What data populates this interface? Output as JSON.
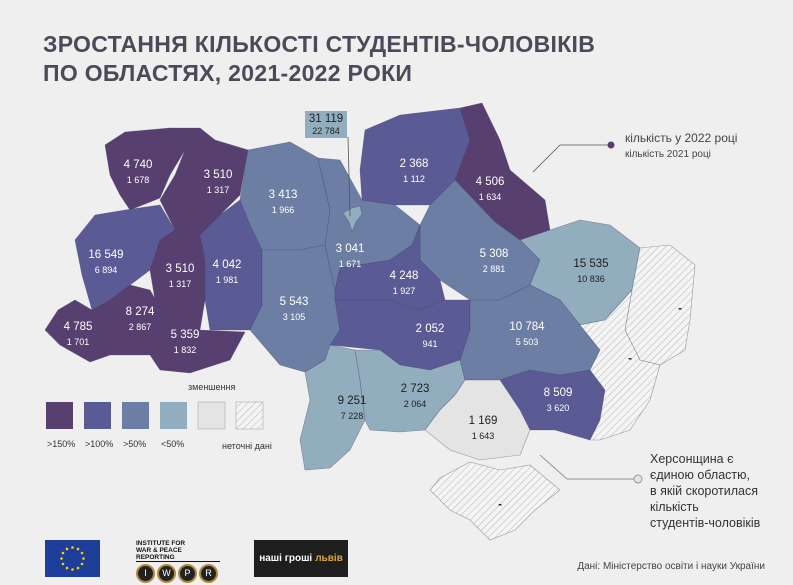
{
  "title": {
    "line1": "ЗРОСТАННЯ КІЛЬКОСТІ СТУДЕНТІВ-ЧОЛОВІКІВ",
    "line2": "ПО ОБЛАСТЯХ, 2021-2022 РОКИ"
  },
  "callout": {
    "line1": "кількість у 2022 році",
    "line2": "кількість 2021 році"
  },
  "colors": {
    "gt150": "#573f70",
    "gt100": "#5a5a95",
    "gt50": "#6c7ea4",
    "lt50": "#92adbd",
    "decrease": "#e4e4e4",
    "no_data": "hatch"
  },
  "regions": {
    "volyn": {
      "v2022": "4 740",
      "v2021": "1 678",
      "category": "gt150"
    },
    "rivne": {
      "v2022": "3 510",
      "v2021": "1 317",
      "category": "gt150"
    },
    "lviv": {
      "v2022": "16 549",
      "v2021": "6 894",
      "category": "gt100"
    },
    "ternopil": {
      "v2022": "3 510",
      "v2021": "1 317",
      "category": "gt150"
    },
    "khmelnytskyi": {
      "v2022": "4 042",
      "v2021": "1 981",
      "category": "gt100"
    },
    "zakarpattia": {
      "v2022": "4 785",
      "v2021": "1 701",
      "category": "gt150"
    },
    "ivano_frankivsk": {
      "v2022": "8 274",
      "v2021": "2 867",
      "category": "gt150"
    },
    "chernivtsi": {
      "v2022": "5 359",
      "v2021": "1 832",
      "category": "gt150"
    },
    "zhytomyr": {
      "v2022": "3 413",
      "v2021": "1 966",
      "category": "gt50"
    },
    "vinnytsia": {
      "v2022": "5 543",
      "v2021": "3 105",
      "category": "gt50"
    },
    "kyiv_oblast": {
      "v2022": "3 041",
      "v2021": "1 671",
      "category": "gt50"
    },
    "kyiv_city": {
      "v2022": "31 119",
      "v2021": "22 784",
      "category": "lt50"
    },
    "chernihiv": {
      "v2022": "2 368",
      "v2021": "1 112",
      "category": "gt100"
    },
    "sumy": {
      "v2022": "4 506",
      "v2021": "1 634",
      "category": "gt150"
    },
    "poltava": {
      "v2022": "5 308",
      "v2021": "2 881",
      "category": "gt50"
    },
    "kharkiv": {
      "v2022": "15 535",
      "v2021": "10 836",
      "category": "lt50"
    },
    "cherkasy": {
      "v2022": "4 248",
      "v2021": "1 927",
      "category": "gt100"
    },
    "kirovohrad": {
      "v2022": "2 052",
      "v2021": "941",
      "category": "gt100"
    },
    "dnipro": {
      "v2022": "10 784",
      "v2021": "5 503",
      "category": "gt50"
    },
    "zaporizhzhia": {
      "v2022": "8 509",
      "v2021": "3 620",
      "category": "gt100"
    },
    "odesa": {
      "v2022": "9 251",
      "v2021": "7 228",
      "category": "lt50"
    },
    "mykolaiv": {
      "v2022": "2 723",
      "v2021": "2 064",
      "category": "lt50"
    },
    "kherson": {
      "v2022": "1 169",
      "v2021": "1 643",
      "category": "decrease"
    },
    "luhansk": {
      "v2022": "-",
      "category": "no_data"
    },
    "donetsk": {
      "v2022": "-",
      "category": "no_data"
    },
    "crimea": {
      "v2022": "-",
      "category": "no_data"
    }
  },
  "legend": {
    "decrease_label": "зменшення",
    "items": [
      {
        "label": ">150%",
        "color": "#573f70"
      },
      {
        "label": ">100%",
        "color": "#5a5a95"
      },
      {
        "label": ">50%",
        "color": "#6c7ea4"
      },
      {
        "label": "<50%",
        "color": "#92adbd"
      },
      {
        "label": "",
        "color": "#e4e4e4"
      },
      {
        "label": "неточні дані",
        "color": "hatch"
      }
    ]
  },
  "kherson_note": {
    "lines": [
      "Херсонщина є",
      "єдиною областю,",
      "в якій скоротилася",
      "кількість",
      "студентів-чоловіків"
    ]
  },
  "logos": {
    "iwpr_line1": "INSTITUTE FOR",
    "iwpr_line2": "WAR & PEACE REPORTING",
    "iwpr_letters": [
      "I",
      "W",
      "P",
      "R"
    ],
    "nashi_groshi_1": "наші гроші",
    "nashi_groshi_2": "львів"
  },
  "source": "Дані: Міністерство освіти і науки України"
}
